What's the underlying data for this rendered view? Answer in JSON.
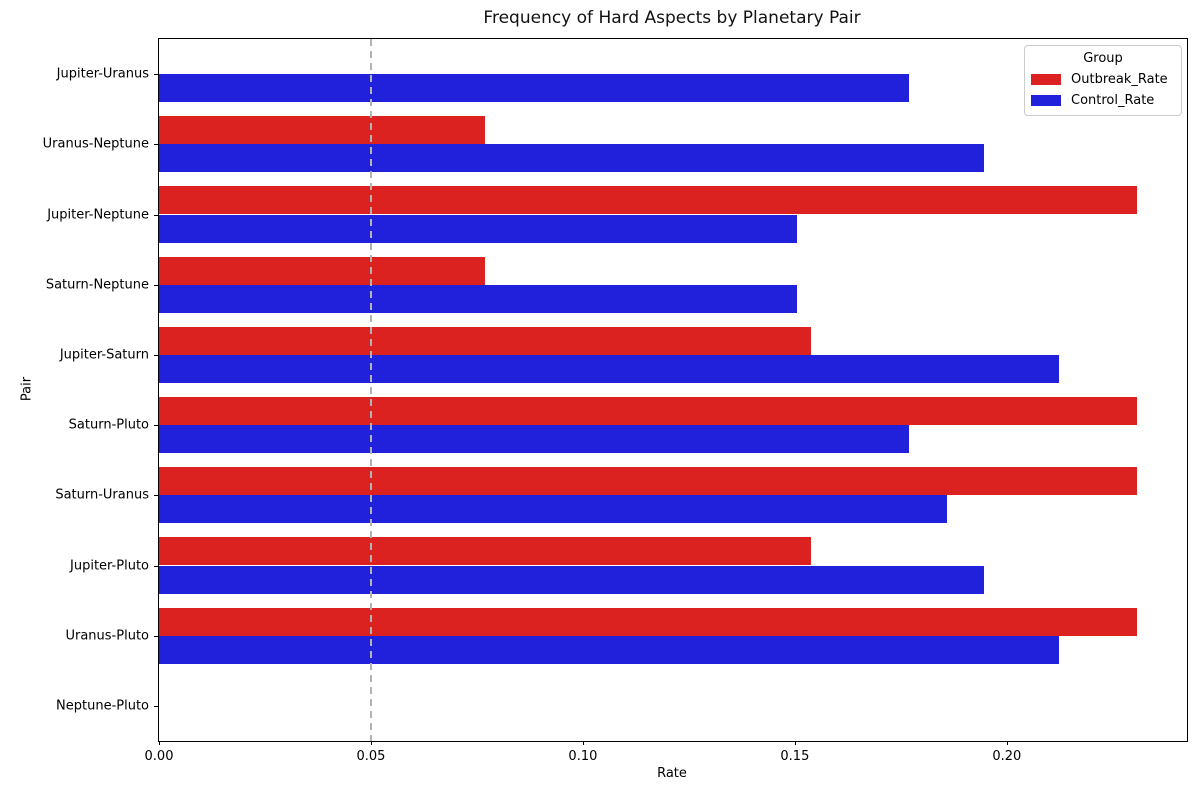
{
  "chart_data": {
    "type": "bar",
    "orientation": "horizontal",
    "title": "Frequency of Hard Aspects by Planetary Pair",
    "xlabel": "Rate",
    "ylabel": "Pair",
    "categories": [
      "Jupiter-Uranus",
      "Uranus-Neptune",
      "Jupiter-Neptune",
      "Saturn-Neptune",
      "Jupiter-Saturn",
      "Saturn-Pluto",
      "Saturn-Uranus",
      "Jupiter-Pluto",
      "Uranus-Pluto",
      "Neptune-Pluto"
    ],
    "series": [
      {
        "name": "Outbreak_Rate",
        "color": "#dc2121",
        "values": [
          0,
          0.0769,
          0.2308,
          0.0769,
          0.1538,
          0.2308,
          0.2308,
          0.1538,
          0.2308,
          0
        ]
      },
      {
        "name": "Control_Rate",
        "color": "#2121dc",
        "values": [
          0.177,
          0.1947,
          0.1504,
          0.1504,
          0.2124,
          0.177,
          0.1858,
          0.1947,
          0.2124,
          0
        ]
      }
    ],
    "legend": {
      "title": "Group",
      "position": "upper-right"
    },
    "x_axis": {
      "min": 0,
      "max": 0.2425,
      "tick_labels": [
        "0.00",
        "0.05",
        "0.10",
        "0.15",
        "0.20"
      ],
      "tick_values": [
        0,
        0.05,
        0.1,
        0.15,
        0.2
      ]
    },
    "reference_line": {
      "x": 0.05,
      "color": "#b3b3b3",
      "style": "dashed"
    },
    "grid": false,
    "background_color": "#ffffff"
  }
}
